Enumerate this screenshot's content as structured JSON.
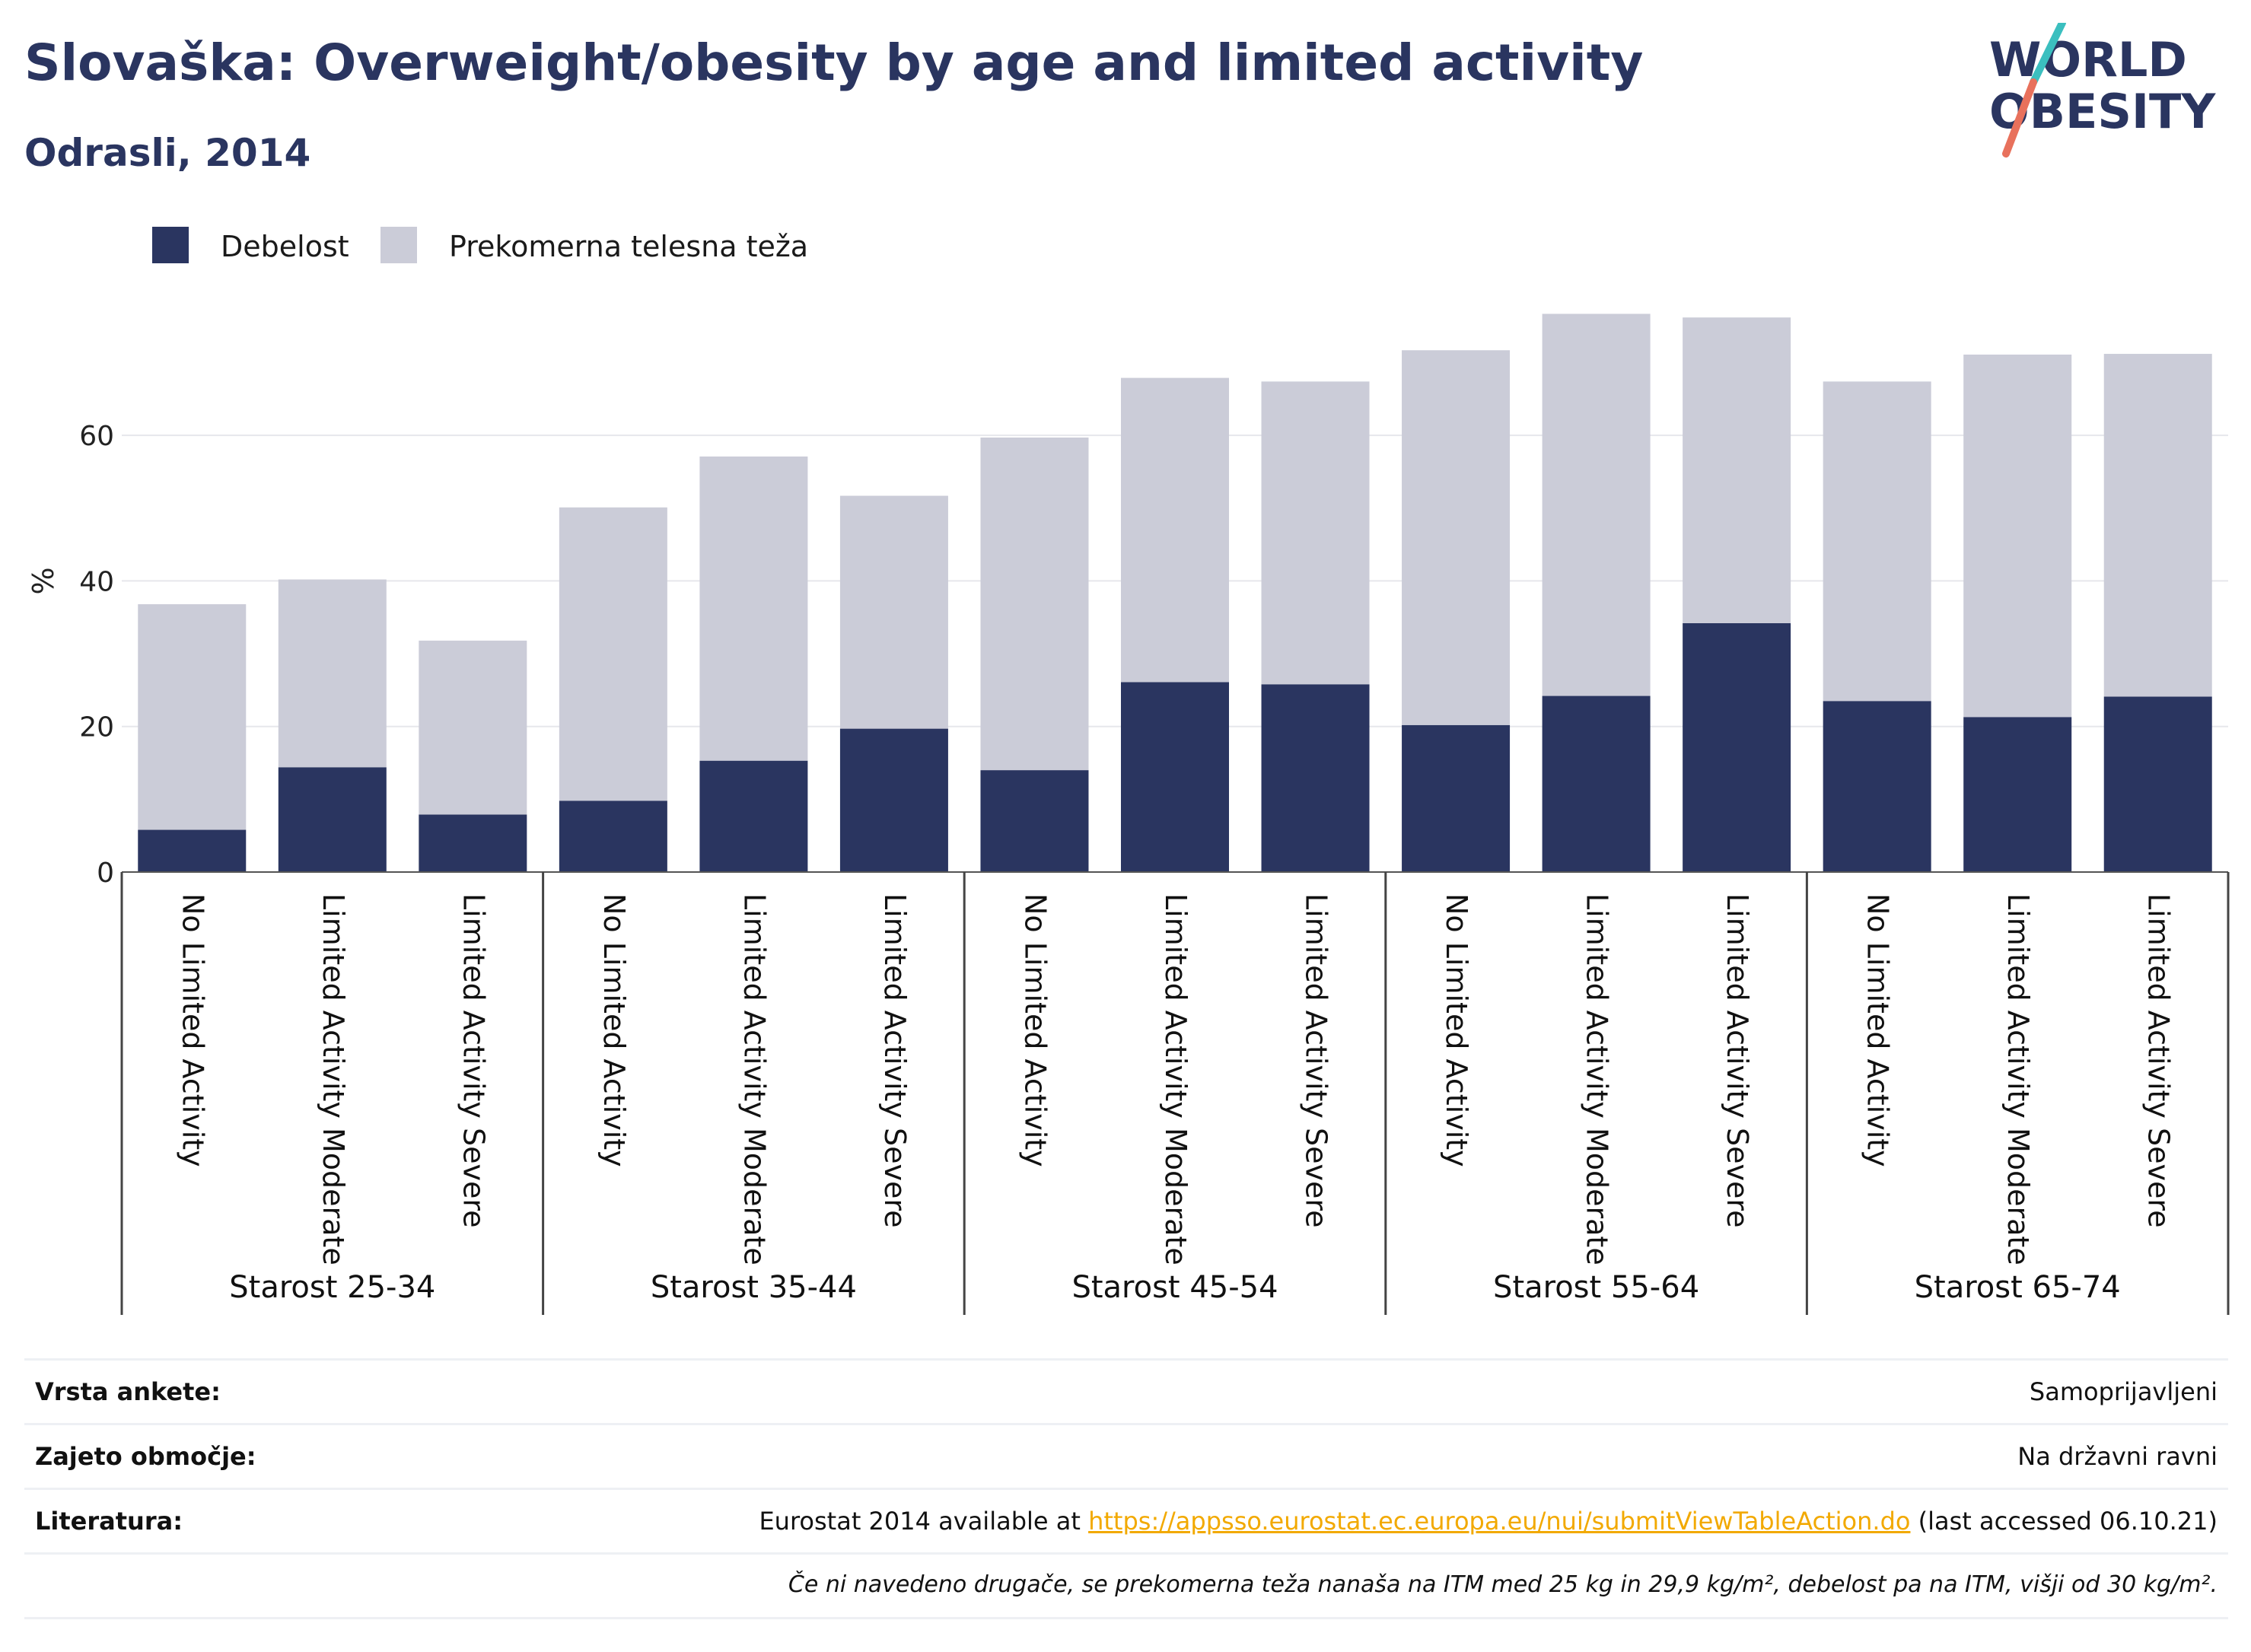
{
  "header": {
    "title": "Slovaška: Overweight/obesity by age and limited activity",
    "subtitle": "Odrasli, 2014"
  },
  "logo": {
    "line1": "WORLD",
    "line2": "OBESITY"
  },
  "colors": {
    "obesity": "#2a3560",
    "overweight": "#cbccd8",
    "title": "#2a3560",
    "link": "#f2a900",
    "logo_teal": "#3bbfbf",
    "logo_coral": "#e8715c"
  },
  "chart_data": {
    "type": "bar",
    "stacked": true,
    "ylabel": "%",
    "ylim": [
      0,
      78
    ],
    "yticks": [
      0,
      20,
      40,
      60
    ],
    "grid": true,
    "legend_position": "top-left",
    "categories": [
      "No Limited Activity",
      "Limited Activity Moderate",
      "Limited Activity Severe",
      "No Limited Activity",
      "Limited Activity Moderate",
      "Limited Activity Severe",
      "No Limited Activity",
      "Limited Activity Moderate",
      "Limited Activity Severe",
      "No Limited Activity",
      "Limited Activity Moderate",
      "Limited Activity Severe",
      "No Limited Activity",
      "Limited Activity Moderate",
      "Limited Activity Severe"
    ],
    "groups": [
      "Starost 25-34",
      "Starost 35-44",
      "Starost 45-54",
      "Starost 55-64",
      "Starost 65-74"
    ],
    "series": [
      {
        "name": "Debelost",
        "values": [
          5.8,
          14.4,
          7.9,
          9.8,
          15.3,
          19.7,
          14.0,
          26.1,
          25.8,
          20.2,
          24.2,
          34.2,
          23.5,
          21.3,
          24.1
        ]
      },
      {
        "name": "Prekomerna telesna teža",
        "values": [
          31.0,
          25.8,
          23.9,
          40.3,
          41.8,
          32.0,
          45.7,
          41.8,
          41.6,
          51.5,
          52.5,
          42.0,
          43.9,
          49.8,
          47.1
        ]
      }
    ]
  },
  "info": {
    "survey_type_label": "Vrsta ankete:",
    "survey_type_value": "Samoprijavljeni",
    "coverage_label": "Zajeto območje:",
    "coverage_value": "Na državni ravni",
    "references_label": "Literatura:",
    "references_prefix": "Eurostat 2014 available at ",
    "references_link": "https://appsso.eurostat.ec.europa.eu/nui/submitViewTableAction.do",
    "references_suffix": " (last accessed 06.10.21)",
    "note": "Če ni navedeno drugače, se prekomerna teža nanaša na ITM med 25 kg in 29,9 kg/m², debelost pa na ITM, višji od 30 kg/m²."
  }
}
